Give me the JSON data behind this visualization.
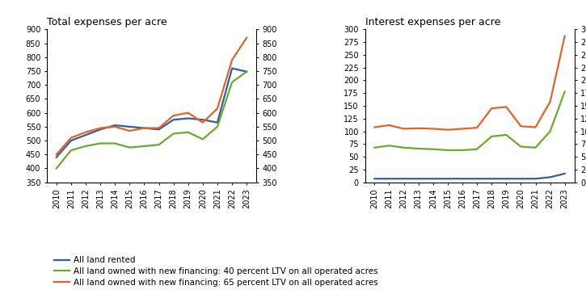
{
  "years": [
    2010,
    2011,
    2012,
    2013,
    2014,
    2015,
    2016,
    2017,
    2018,
    2019,
    2020,
    2021,
    2022,
    2023
  ],
  "total_rented": [
    440,
    500,
    520,
    540,
    555,
    550,
    545,
    540,
    575,
    580,
    575,
    565,
    760,
    748
  ],
  "total_40ltv": [
    400,
    465,
    480,
    490,
    490,
    475,
    480,
    485,
    525,
    530,
    505,
    550,
    710,
    748
  ],
  "total_65ltv": [
    450,
    510,
    530,
    545,
    550,
    535,
    545,
    545,
    590,
    600,
    565,
    615,
    790,
    870
  ],
  "interest_rented": [
    7,
    7,
    7,
    7,
    7,
    7,
    7,
    7,
    7,
    7,
    7,
    7,
    10,
    17
  ],
  "interest_40ltv": [
    68,
    72,
    68,
    66,
    65,
    63,
    63,
    65,
    90,
    93,
    70,
    68,
    100,
    178
  ],
  "interest_65ltv": [
    108,
    112,
    105,
    106,
    105,
    103,
    105,
    107,
    145,
    148,
    110,
    108,
    158,
    287
  ],
  "color_rented": "#2e5fa3",
  "color_40ltv": "#6aaa2e",
  "color_65ltv": "#e2622a",
  "label_rented": "All land rented",
  "label_40ltv": "All land owned with new financing: 40 percent LTV on all operated acres",
  "label_65ltv": "All land owned with new financing: 65 percent LTV on all operated acres",
  "title_left": "Total expenses per acre",
  "title_right": "Interest expenses per acre",
  "ylim_total": [
    350,
    900
  ],
  "ylim_interest": [
    0,
    300
  ],
  "yticks_total": [
    350,
    400,
    450,
    500,
    550,
    600,
    650,
    700,
    750,
    800,
    850,
    900
  ],
  "yticks_interest": [
    0,
    25,
    50,
    75,
    100,
    125,
    150,
    175,
    200,
    225,
    250,
    275,
    300
  ],
  "linewidth": 1.6,
  "tick_labelsize": 7.0,
  "title_fontsize": 9.0
}
